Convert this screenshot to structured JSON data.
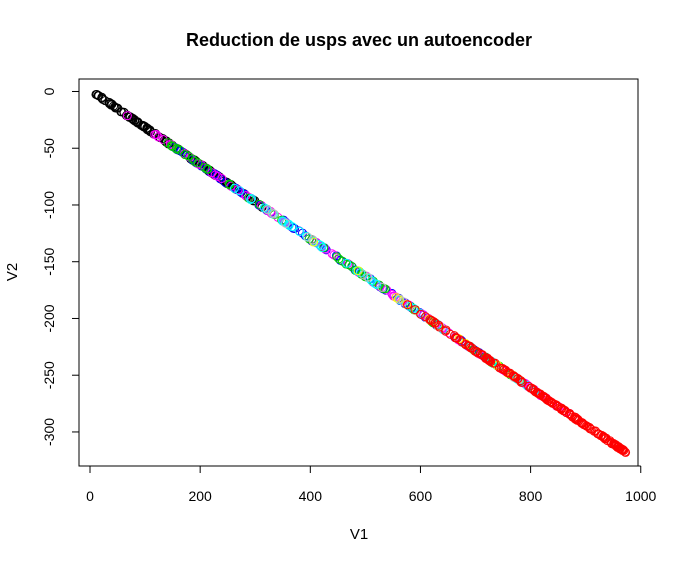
{
  "chart_data": {
    "type": "scatter",
    "title": "Reduction de usps avec un autoencoder",
    "xlabel": "V1",
    "ylabel": "V2",
    "xlim": [
      -20,
      995
    ],
    "ylim": [
      -330,
      11
    ],
    "xticks": [
      0,
      200,
      400,
      600,
      800,
      1000
    ],
    "yticks": [
      0,
      -50,
      -100,
      -150,
      -200,
      -250,
      -300
    ],
    "xtick_labels": [
      "0",
      "200",
      "400",
      "600",
      "800",
      "1000"
    ],
    "ytick_labels": [
      "0",
      "-50",
      "-100",
      "-150",
      "-200",
      "-250",
      "-300"
    ],
    "grid": false,
    "legend": "none",
    "marker": "open-circle",
    "series_colors": [
      "#000000",
      "#FF0000",
      "#00CD00",
      "#0000FF",
      "#00FFFF",
      "#FF00FF",
      "#FFFF00",
      "#BEBEBE"
    ],
    "relationship": {
      "slope": -0.328,
      "intercept": 1.2
    },
    "x_range_observed": [
      8,
      975
    ],
    "point_groups": [
      {
        "color": "#000000",
        "x_from": 8,
        "x_to": 320,
        "count": 160
      },
      {
        "color": "#0000FF",
        "x_from": 150,
        "x_to": 720,
        "count": 90
      },
      {
        "color": "#FF00FF",
        "x_from": 60,
        "x_to": 880,
        "count": 90
      },
      {
        "color": "#00CD00",
        "x_from": 140,
        "x_to": 800,
        "count": 60
      },
      {
        "color": "#00FFFF",
        "x_from": 250,
        "x_to": 820,
        "count": 45
      },
      {
        "color": "#FFFF00",
        "x_from": 400,
        "x_to": 780,
        "count": 20
      },
      {
        "color": "#BEBEBE",
        "x_from": 300,
        "x_to": 800,
        "count": 20
      },
      {
        "color": "#FF0000",
        "x_from": 560,
        "x_to": 975,
        "count": 190
      }
    ]
  }
}
